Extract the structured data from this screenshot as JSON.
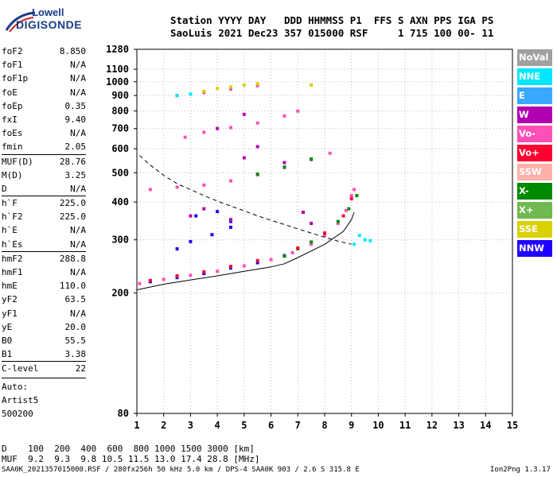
{
  "logo": {
    "line1": "Lowell",
    "line2": "DIGISONDE"
  },
  "header": {
    "line1": "Station YYYY DAY   DDD HHMMSS P1  FFS S AXN PPS IGA PS",
    "line2": "SaoLuis 2021 Dec23 357 015000 RSF     1 715 100 00- 11"
  },
  "params_a": [
    {
      "k": "foF2",
      "v": "8.850"
    },
    {
      "k": "foF1",
      "v": "N/A"
    },
    {
      "k": "foF1p",
      "v": "N/A"
    },
    {
      "k": "foE",
      "v": "N/A"
    },
    {
      "k": "foEp",
      "v": "0.35"
    },
    {
      "k": "fxI",
      "v": "9.40"
    },
    {
      "k": "foEs",
      "v": "N/A"
    },
    {
      "k": "fmin",
      "v": "2.05"
    }
  ],
  "params_b": [
    {
      "k": "MUF(D)",
      "v": "28.76"
    },
    {
      "k": "M(D)",
      "v": "3.25"
    },
    {
      "k": "D",
      "v": "N/A"
    }
  ],
  "params_c": [
    {
      "k": "h`F",
      "v": "225.0"
    },
    {
      "k": "h`F2",
      "v": "225.0"
    },
    {
      "k": "h`E",
      "v": "N/A"
    },
    {
      "k": "h`Es",
      "v": "N/A"
    }
  ],
  "params_d": [
    {
      "k": "hmF2",
      "v": "288.8"
    },
    {
      "k": "hmF1",
      "v": "N/A"
    },
    {
      "k": "hmE",
      "v": "110.0"
    },
    {
      "k": "yF2",
      "v": "63.5"
    },
    {
      "k": "yF1",
      "v": "N/A"
    },
    {
      "k": "yE",
      "v": "20.0"
    },
    {
      "k": "B0",
      "v": "55.5"
    },
    {
      "k": "B1",
      "v": "3.38"
    }
  ],
  "params_e": [
    {
      "k": "C-level",
      "v": "22"
    }
  ],
  "auto": {
    "label": "Auto:",
    "artist": "Artist5",
    "code": "500200"
  },
  "legend": [
    {
      "label": "NoVal",
      "color": "#a0a0a0"
    },
    {
      "label": "NNE",
      "color": "#00e8ff"
    },
    {
      "label": "E",
      "color": "#3aa8ff"
    },
    {
      "label": "W",
      "color": "#b000b0"
    },
    {
      "label": "Vo-",
      "color": "#ff50b8"
    },
    {
      "label": "Vo+",
      "color": "#ff0030"
    },
    {
      "label": "SSW",
      "color": "#ffb0a8"
    },
    {
      "label": "X-",
      "color": "#008a00"
    },
    {
      "label": "X+",
      "color": "#70b850"
    },
    {
      "label": "SSE",
      "color": "#d8d000"
    },
    {
      "label": "NNW",
      "color": "#2000ff"
    }
  ],
  "muf_table": {
    "line1": "D    100  200  400  600  800 1000 1500 3000 [km]",
    "line2": "MUF  9.2  9.3  9.8 10.5 11.5 13.0 17.4 28.8 [MHz]"
  },
  "footer": {
    "left": "SAA0K_2021357015000.RSF / 280fx256h 50 kHz 5.0 km / DPS-4 SAA0K 903 / 2.6 S 315.8 E",
    "right": "Ion2Png 1.3.17"
  },
  "chart_data": {
    "type": "scatter",
    "xlabel": "",
    "ylabel": "",
    "xlim": [
      1,
      15
    ],
    "ylim": [
      80,
      1280
    ],
    "y_scale": "log",
    "x_ticks": [
      1,
      2,
      3,
      4,
      5,
      6,
      7,
      8,
      9,
      10,
      11,
      12,
      13,
      14,
      15
    ],
    "y_ticks": [
      80,
      200,
      300,
      400,
      500,
      600,
      700,
      800,
      900,
      1000,
      1100,
      1280
    ],
    "grid": "dotted",
    "series": [
      {
        "name": "Vo-",
        "color": "#ff50b8",
        "points": [
          [
            1.1,
            215
          ],
          [
            2,
            222
          ],
          [
            3,
            229
          ],
          [
            4,
            236
          ],
          [
            5,
            246
          ],
          [
            6,
            258
          ],
          [
            6.8,
            272
          ],
          [
            7.5,
            290
          ],
          [
            8,
            310
          ],
          [
            8.5,
            340
          ],
          [
            8.8,
            375
          ],
          [
            9.0,
            420
          ],
          [
            9.1,
            440
          ],
          [
            1.5,
            440
          ],
          [
            2.5,
            448
          ],
          [
            3.5,
            455
          ],
          [
            4.5,
            470
          ],
          [
            5.5,
            492
          ],
          [
            6.5,
            520
          ],
          [
            7.5,
            552
          ],
          [
            8.2,
            580
          ],
          [
            2.8,
            655
          ],
          [
            3.5,
            680
          ],
          [
            4.5,
            705
          ],
          [
            5.5,
            730
          ],
          [
            6.5,
            770
          ],
          [
            7,
            800
          ],
          [
            2.5,
            900
          ],
          [
            3.5,
            920
          ],
          [
            4.5,
            945
          ],
          [
            5.5,
            970
          ]
        ]
      },
      {
        "name": "NNW",
        "color": "#2000ff",
        "points": [
          [
            1.5,
            218
          ],
          [
            2.5,
            225
          ],
          [
            3.5,
            232
          ],
          [
            4.5,
            242
          ],
          [
            5.5,
            252
          ],
          [
            6.5,
            266
          ],
          [
            2.5,
            280
          ],
          [
            3,
            296
          ],
          [
            3.8,
            312
          ],
          [
            4.5,
            330
          ],
          [
            3.2,
            360
          ],
          [
            4,
            372
          ],
          [
            4.5,
            345
          ]
        ]
      },
      {
        "name": "X-",
        "color": "#008a00",
        "points": [
          [
            6.5,
            265
          ],
          [
            7,
            280
          ],
          [
            7.5,
            295
          ],
          [
            8,
            315
          ],
          [
            8.5,
            345
          ],
          [
            8.9,
            380
          ],
          [
            9.2,
            420
          ],
          [
            5.5,
            495
          ],
          [
            6.5,
            522
          ],
          [
            7.5,
            555
          ]
        ]
      },
      {
        "name": "NNE",
        "color": "#00e8ff",
        "points": [
          [
            9.1,
            290
          ],
          [
            9.3,
            310
          ],
          [
            9.5,
            300
          ],
          [
            9.7,
            298
          ],
          [
            2.5,
            900
          ],
          [
            3,
            910
          ]
        ]
      },
      {
        "name": "SSE",
        "color": "#d8d000",
        "points": [
          [
            3.5,
            930
          ],
          [
            4,
            950
          ],
          [
            4.5,
            960
          ],
          [
            5,
            975
          ],
          [
            5.5,
            985
          ],
          [
            7.5,
            975
          ]
        ]
      },
      {
        "name": "W",
        "color": "#b000b0",
        "points": [
          [
            3,
            360
          ],
          [
            3.5,
            380
          ],
          [
            4.5,
            350
          ],
          [
            5,
            560
          ],
          [
            5.5,
            610
          ],
          [
            6.5,
            540
          ],
          [
            7.2,
            370
          ],
          [
            7.5,
            340
          ],
          [
            4,
            700
          ],
          [
            5,
            780
          ]
        ]
      },
      {
        "name": "Vo+",
        "color": "#ff0030",
        "points": [
          [
            1.5,
            220
          ],
          [
            2.5,
            228
          ],
          [
            3.5,
            235
          ],
          [
            4.5,
            245
          ],
          [
            5.5,
            256
          ],
          [
            7,
            282
          ],
          [
            8,
            316
          ],
          [
            8.7,
            360
          ],
          [
            9,
            410
          ]
        ]
      }
    ],
    "curves": [
      {
        "name": "",
        "style": "solid",
        "points": [
          [
            1,
            205
          ],
          [
            2,
            214
          ],
          [
            3,
            221
          ],
          [
            4,
            228
          ],
          [
            5,
            236
          ],
          [
            6,
            244
          ],
          [
            6.5,
            250
          ],
          [
            7,
            262
          ],
          [
            8,
            290
          ],
          [
            8.7,
            320
          ],
          [
            9.0,
            350
          ],
          [
            9.1,
            370
          ]
        ]
      },
      {
        "name": "",
        "style": "dashed",
        "points": [
          [
            1.1,
            570
          ],
          [
            1.5,
            530
          ],
          [
            2,
            490
          ],
          [
            2.5,
            460
          ],
          [
            3,
            440
          ],
          [
            3.5,
            420
          ],
          [
            4,
            403
          ],
          [
            4.5,
            388
          ],
          [
            5,
            374
          ],
          [
            5.5,
            360
          ],
          [
            6,
            348
          ],
          [
            6.5,
            337
          ],
          [
            7,
            326
          ],
          [
            7.5,
            316
          ],
          [
            8,
            306
          ],
          [
            8.5,
            297
          ],
          [
            9,
            290
          ]
        ]
      }
    ]
  }
}
